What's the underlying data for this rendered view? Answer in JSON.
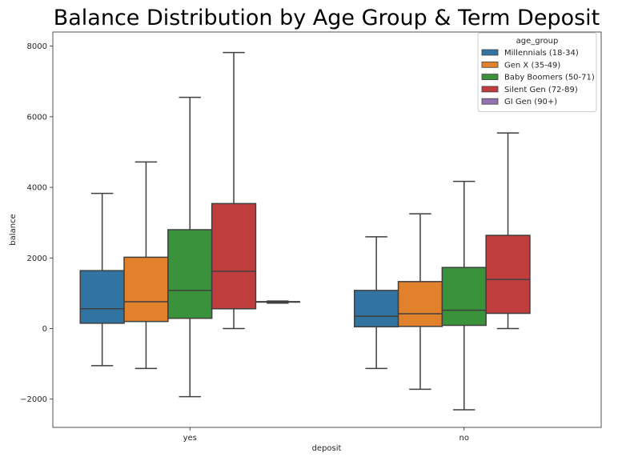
{
  "chart_data": {
    "type": "box",
    "title": "Balance Distribution by Age Group & Term Deposit",
    "xlabel": "deposit",
    "ylabel": "balance",
    "categories": [
      "yes",
      "no"
    ],
    "ylim": [
      -2800,
      8400
    ],
    "yticks": [
      -2000,
      0,
      2000,
      4000,
      6000,
      8000
    ],
    "ytick_labels": [
      "−2000",
      "0",
      "2000",
      "4000",
      "6000",
      "8000"
    ],
    "legend": {
      "title": "age_group",
      "placement": "top-right"
    },
    "series": [
      {
        "name": "Millennials (18-34)",
        "color": "#3274a1",
        "boxes": [
          {
            "category": "yes",
            "whislo": -1050,
            "q1": 150,
            "med": 560,
            "q3": 1640,
            "whishi": 3830
          },
          {
            "category": "no",
            "whislo": -1130,
            "q1": 50,
            "med": 350,
            "q3": 1080,
            "whishi": 2600
          }
        ]
      },
      {
        "name": "Gen X (35-49)",
        "color": "#e1812c",
        "boxes": [
          {
            "category": "yes",
            "whislo": -1130,
            "q1": 200,
            "med": 760,
            "q3": 2020,
            "whishi": 4720
          },
          {
            "category": "no",
            "whislo": -1720,
            "q1": 60,
            "med": 420,
            "q3": 1330,
            "whishi": 3250
          }
        ]
      },
      {
        "name": "Baby Boomers (50-71)",
        "color": "#3a923a",
        "boxes": [
          {
            "category": "yes",
            "whislo": -1930,
            "q1": 290,
            "med": 1080,
            "q3": 2800,
            "whishi": 6550
          },
          {
            "category": "no",
            "whislo": -2300,
            "q1": 90,
            "med": 520,
            "q3": 1730,
            "whishi": 4170
          }
        ]
      },
      {
        "name": "Silent Gen (72-89)",
        "color": "#c03d3e",
        "boxes": [
          {
            "category": "yes",
            "whislo": 0,
            "q1": 560,
            "med": 1620,
            "q3": 3540,
            "whishi": 7820
          },
          {
            "category": "no",
            "whislo": 0,
            "q1": 430,
            "med": 1390,
            "q3": 2640,
            "whishi": 5540
          }
        ]
      },
      {
        "name": "GI Gen (90+)",
        "color": "#9372b2",
        "boxes": [
          {
            "category": "yes",
            "whislo": 720,
            "q1": 760,
            "med": 760,
            "q3": 760,
            "whishi": 780
          }
        ]
      }
    ]
  }
}
